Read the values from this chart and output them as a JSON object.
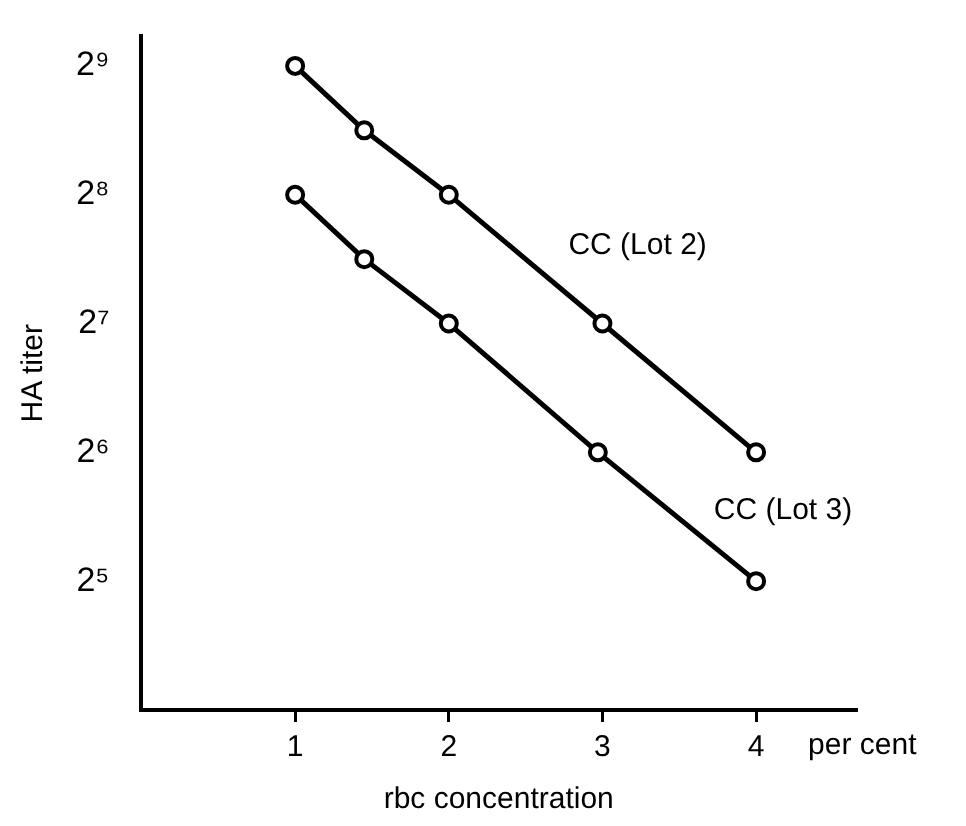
{
  "chart_data": {
    "type": "line",
    "xlabel": "rbc concentration",
    "ylabel": "HA titer",
    "xlim": [
      0,
      4.65
    ],
    "xticks": [
      1,
      2,
      3,
      4
    ],
    "ylim": [
      16,
      600
    ],
    "yticks": [
      {
        "value": 32,
        "label": "2⁵"
      },
      {
        "value": 64,
        "label": "2⁶"
      },
      {
        "value": 128,
        "label": "2⁷"
      },
      {
        "value": 256,
        "label": "2⁸"
      },
      {
        "value": 512,
        "label": "2⁹"
      }
    ],
    "log": "y",
    "grid": false,
    "legend": false,
    "marker": "circle",
    "line_style": "solid",
    "annotations": [
      "per cent"
    ],
    "series": [
      {
        "name": "CC (Lot 2)",
        "color": "#000000",
        "x": [
          1,
          1.45,
          2,
          3,
          4
        ],
        "values": [
          512,
          362,
          256,
          128,
          64
        ]
      },
      {
        "name": "CC (Lot 3)",
        "color": "#000000",
        "x": [
          1,
          1.45,
          2,
          2.97,
          4
        ],
        "values": [
          256,
          181,
          128,
          64,
          32
        ]
      }
    ]
  }
}
